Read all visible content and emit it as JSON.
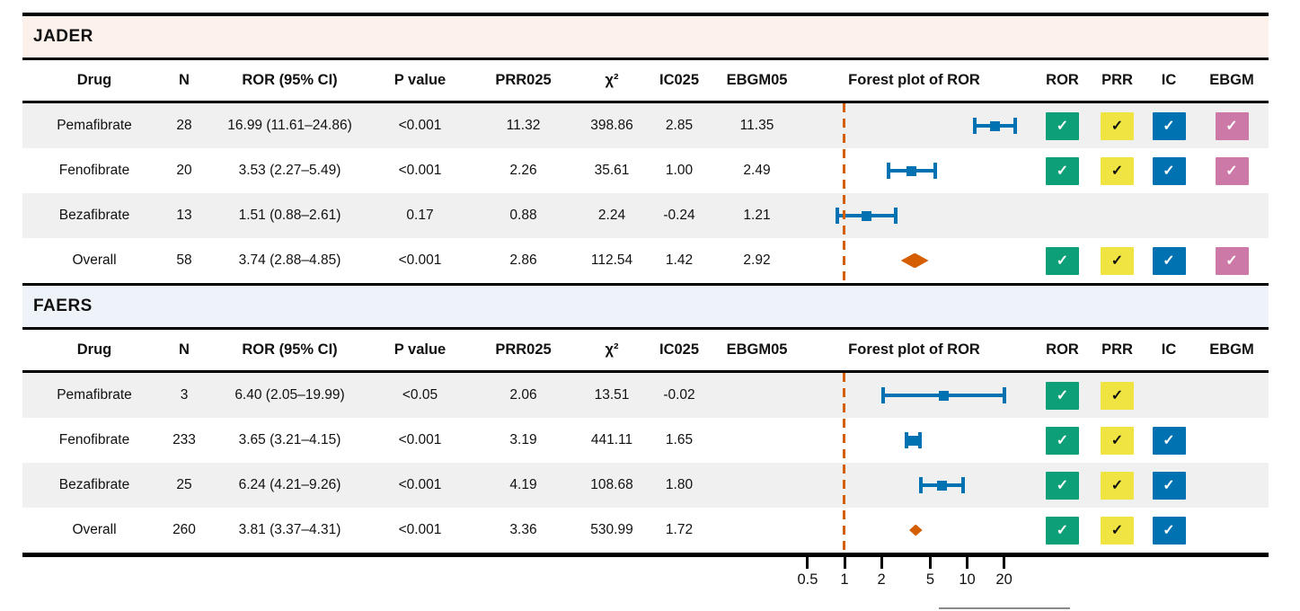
{
  "palette": {
    "blue": "#0072B2",
    "orange": "#D55E00",
    "check_ror": "#0DA078",
    "check_prr": "#F0E442",
    "check_ic": "#0072B2",
    "check_ebgm": "#CC79A7",
    "check_glyph_light": "#ffffff",
    "check_glyph_dark": "#111111",
    "stripe": "#f0f0f0",
    "jader_band": "#fdf1ec",
    "faers_band": "#eef2f9"
  },
  "check_glyph": "✓",
  "columns": [
    "Drug",
    "N",
    "ROR (95% CI)",
    "P value",
    "PRR025",
    "χ²",
    "IC025",
    "EBGM05",
    "Forest plot of ROR",
    "ROR",
    "PRR",
    "IC",
    "EBGM"
  ],
  "axis": {
    "tick_labels": [
      "0.5",
      "1",
      "2",
      "5",
      "10",
      "20"
    ],
    "tick_values": [
      0.5,
      1,
      2,
      5,
      10,
      20
    ]
  },
  "sections": [
    {
      "title": "JADER",
      "band_color": "#fdf1ec",
      "rows": [
        {
          "drug": "Pemafibrate",
          "n": "28",
          "ror_ci": "16.99 (11.61–24.86)",
          "p": "<0.001",
          "prr025": "11.32",
          "chi2": "398.86",
          "ic025": "2.85",
          "ebgm05": "11.35",
          "forest": {
            "type": "bar",
            "est": 16.99,
            "lo": 11.61,
            "hi": 24.86
          },
          "checks": {
            "ror": true,
            "prr": true,
            "ic": true,
            "ebgm": true
          }
        },
        {
          "drug": "Fenofibrate",
          "n": "20",
          "ror_ci": "3.53 (2.27–5.49)",
          "p": "<0.001",
          "prr025": "2.26",
          "chi2": "35.61",
          "ic025": "1.00",
          "ebgm05": "2.49",
          "forest": {
            "type": "bar",
            "est": 3.53,
            "lo": 2.27,
            "hi": 5.49
          },
          "checks": {
            "ror": true,
            "prr": true,
            "ic": true,
            "ebgm": true
          }
        },
        {
          "drug": "Bezafibrate",
          "n": "13",
          "ror_ci": "1.51 (0.88–2.61)",
          "p": "0.17",
          "prr025": "0.88",
          "chi2": "2.24",
          "ic025": "-0.24",
          "ebgm05": "1.21",
          "forest": {
            "type": "bar",
            "est": 1.51,
            "lo": 0.88,
            "hi": 2.61
          },
          "checks": {
            "ror": false,
            "prr": false,
            "ic": false,
            "ebgm": false
          }
        },
        {
          "drug": "Overall",
          "n": "58",
          "ror_ci": "3.74 (2.88–4.85)",
          "p": "<0.001",
          "prr025": "2.86",
          "chi2": "112.54",
          "ic025": "1.42",
          "ebgm05": "2.92",
          "forest": {
            "type": "diamond",
            "est": 3.74,
            "lo": 2.88,
            "hi": 4.85
          },
          "checks": {
            "ror": true,
            "prr": true,
            "ic": true,
            "ebgm": true
          }
        }
      ]
    },
    {
      "title": "FAERS",
      "band_color": "#eef2f9",
      "rows": [
        {
          "drug": "Pemafibrate",
          "n": "3",
          "ror_ci": "6.40 (2.05–19.99)",
          "p": "<0.05",
          "prr025": "2.06",
          "chi2": "13.51",
          "ic025": "-0.02",
          "ebgm05": "",
          "forest": {
            "type": "bar",
            "est": 6.4,
            "lo": 2.05,
            "hi": 19.99
          },
          "checks": {
            "ror": true,
            "prr": true,
            "ic": false,
            "ebgm": false
          }
        },
        {
          "drug": "Fenofibrate",
          "n": "233",
          "ror_ci": "3.65 (3.21–4.15)",
          "p": "<0.001",
          "prr025": "3.19",
          "chi2": "441.11",
          "ic025": "1.65",
          "ebgm05": "",
          "forest": {
            "type": "bar",
            "est": 3.65,
            "lo": 3.21,
            "hi": 4.15
          },
          "checks": {
            "ror": true,
            "prr": true,
            "ic": true,
            "ebgm": false
          }
        },
        {
          "drug": "Bezafibrate",
          "n": "25",
          "ror_ci": "6.24 (4.21–9.26)",
          "p": "<0.001",
          "prr025": "4.19",
          "chi2": "108.68",
          "ic025": "1.80",
          "ebgm05": "",
          "forest": {
            "type": "bar",
            "est": 6.24,
            "lo": 4.21,
            "hi": 9.26
          },
          "checks": {
            "ror": true,
            "prr": true,
            "ic": true,
            "ebgm": false
          }
        },
        {
          "drug": "Overall",
          "n": "260",
          "ror_ci": "3.81 (3.37–4.31)",
          "p": "<0.001",
          "prr025": "3.36",
          "chi2": "530.99",
          "ic025": "1.72",
          "ebgm05": "",
          "forest": {
            "type": "diamond",
            "est": 3.81,
            "lo": 3.37,
            "hi": 4.31
          },
          "checks": {
            "ror": true,
            "prr": true,
            "ic": true,
            "ebgm": false
          }
        }
      ]
    }
  ],
  "chart_data": {
    "type": "scatter",
    "title": "Forest plot of ROR",
    "x_scale": "log10",
    "x_ticks": [
      0.5,
      1,
      2,
      5,
      10,
      20
    ],
    "xlim": [
      0.4,
      30
    ],
    "reference_line_x": 1,
    "marker_color": "#0072B2",
    "summary_color": "#D55E00",
    "series": [
      {
        "name": "JADER",
        "points": [
          {
            "label": "Pemafibrate",
            "ror": 16.99,
            "ci": [
              11.61,
              24.86
            ],
            "marker": "square"
          },
          {
            "label": "Fenofibrate",
            "ror": 3.53,
            "ci": [
              2.27,
              5.49
            ],
            "marker": "square"
          },
          {
            "label": "Bezafibrate",
            "ror": 1.51,
            "ci": [
              0.88,
              2.61
            ],
            "marker": "square"
          },
          {
            "label": "Overall",
            "ror": 3.74,
            "ci": [
              2.88,
              4.85
            ],
            "marker": "diamond"
          }
        ]
      },
      {
        "name": "FAERS",
        "points": [
          {
            "label": "Pemafibrate",
            "ror": 6.4,
            "ci": [
              2.05,
              19.99
            ],
            "marker": "square"
          },
          {
            "label": "Fenofibrate",
            "ror": 3.65,
            "ci": [
              3.21,
              4.15
            ],
            "marker": "square"
          },
          {
            "label": "Bezafibrate",
            "ror": 6.24,
            "ci": [
              4.21,
              9.26
            ],
            "marker": "square"
          },
          {
            "label": "Overall",
            "ror": 3.81,
            "ci": [
              3.37,
              4.31
            ],
            "marker": "diamond"
          }
        ]
      }
    ]
  }
}
